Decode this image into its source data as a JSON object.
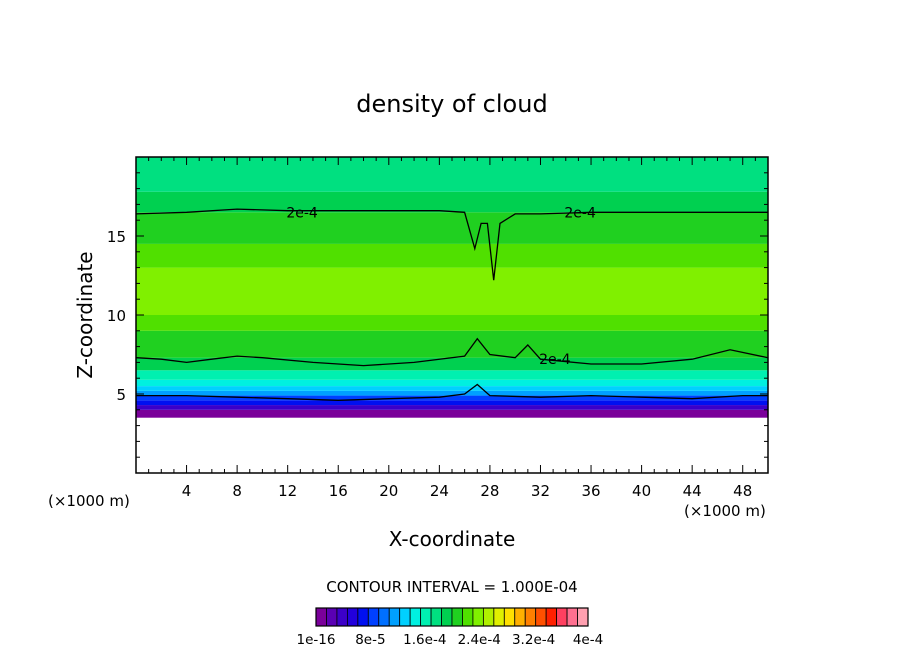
{
  "chart_data": {
    "type": "heatmap",
    "title": "density of cloud",
    "xlabel": "X-coordinate",
    "ylabel": "Z-coordinate",
    "x_unit": "(×1000 m)",
    "y_unit": "(×1000 m)",
    "xlim": [
      0,
      50
    ],
    "ylim": [
      0,
      20
    ],
    "x_ticks": [
      4,
      8,
      12,
      16,
      20,
      24,
      28,
      32,
      36,
      40,
      44,
      48
    ],
    "y_ticks": [
      5,
      10,
      15
    ],
    "contour_interval_text": "CONTOUR INTERVAL = 1.000E-04",
    "contour_labels": [
      "2e-4",
      "2e-4",
      "2e-4"
    ],
    "colorbar": {
      "labels": [
        "1e-16",
        "8e-5",
        "1.6e-4",
        "2.4e-4",
        "3.2e-4",
        "4e-4"
      ],
      "colors": [
        "#7a009a",
        "#5a00b4",
        "#3c00c8",
        "#2200dc",
        "#0010f0",
        "#0040ff",
        "#0070ff",
        "#00a0ff",
        "#00d0ff",
        "#00f0e0",
        "#00f0b0",
        "#00e080",
        "#00d050",
        "#20d020",
        "#50e000",
        "#80f000",
        "#b0f000",
        "#e0f000",
        "#ffe000",
        "#ffb000",
        "#ff8000",
        "#ff5000",
        "#ff2000",
        "#ff4060",
        "#ff7090",
        "#ffa0b0"
      ]
    },
    "contours": [
      {
        "label": "2e-4",
        "z": [
          [
            0,
            16.4
          ],
          [
            4,
            16.5
          ],
          [
            8,
            16.7
          ],
          [
            12,
            16.6
          ],
          [
            16,
            16.6
          ],
          [
            20,
            16.6
          ],
          [
            24,
            16.6
          ],
          [
            26,
            16.5
          ],
          [
            26.8,
            14.2
          ],
          [
            27.3,
            15.8
          ],
          [
            27.8,
            15.8
          ],
          [
            28.3,
            12.2
          ],
          [
            28.8,
            15.8
          ],
          [
            30,
            16.4
          ],
          [
            32,
            16.4
          ],
          [
            36,
            16.5
          ],
          [
            40,
            16.5
          ],
          [
            44,
            16.5
          ],
          [
            48,
            16.5
          ],
          [
            50,
            16.5
          ]
        ]
      },
      {
        "label": "2e-4",
        "z": [
          [
            0,
            7.3
          ],
          [
            2,
            7.2
          ],
          [
            4,
            7.0
          ],
          [
            6,
            7.2
          ],
          [
            8,
            7.4
          ],
          [
            10,
            7.3
          ],
          [
            14,
            7.0
          ],
          [
            18,
            6.8
          ],
          [
            22,
            7.0
          ],
          [
            26,
            7.4
          ],
          [
            27,
            8.5
          ],
          [
            28,
            7.5
          ],
          [
            30,
            7.3
          ],
          [
            31,
            8.1
          ],
          [
            32,
            7.2
          ],
          [
            36,
            6.9
          ],
          [
            40,
            6.9
          ],
          [
            44,
            7.2
          ],
          [
            47,
            7.8
          ],
          [
            50,
            7.3
          ]
        ]
      },
      {
        "label": "",
        "z": [
          [
            0,
            4.9
          ],
          [
            4,
            4.9
          ],
          [
            8,
            4.8
          ],
          [
            12,
            4.7
          ],
          [
            16,
            4.6
          ],
          [
            20,
            4.7
          ],
          [
            24,
            4.8
          ],
          [
            26,
            5.0
          ],
          [
            27,
            5.6
          ],
          [
            28,
            4.9
          ],
          [
            32,
            4.8
          ],
          [
            36,
            4.9
          ],
          [
            40,
            4.8
          ],
          [
            44,
            4.7
          ],
          [
            48,
            4.9
          ],
          [
            50,
            4.9
          ]
        ]
      }
    ],
    "field": {
      "z_bands": [
        {
          "z0": 0.0,
          "z1": 3.5,
          "value": null
        },
        {
          "z0": 3.5,
          "z1": 4.0,
          "value": 0.0
        },
        {
          "z0": 4.0,
          "z1": 4.3,
          "value": 3e-05
        },
        {
          "z0": 4.3,
          "z1": 4.6,
          "value": 6e-05
        },
        {
          "z0": 4.6,
          "z1": 4.9,
          "value": 8e-05
        },
        {
          "z0": 4.9,
          "z1": 5.2,
          "value": 0.00011
        },
        {
          "z0": 5.2,
          "z1": 5.5,
          "value": 0.00013
        },
        {
          "z0": 5.5,
          "z1": 5.9,
          "value": 0.000145
        },
        {
          "z0": 5.9,
          "z1": 6.5,
          "value": 0.00016
        },
        {
          "z0": 6.5,
          "z1": 7.3,
          "value": 0.000185
        },
        {
          "z0": 7.3,
          "z1": 9.0,
          "value": 0.00021
        },
        {
          "z0": 9.0,
          "z1": 10.0,
          "value": 0.00023
        },
        {
          "z0": 10.0,
          "z1": 13.0,
          "value": 0.00024
        },
        {
          "z0": 13.0,
          "z1": 14.5,
          "value": 0.00023
        },
        {
          "z0": 14.5,
          "z1": 16.5,
          "value": 0.00021
        },
        {
          "z0": 16.5,
          "z1": 17.8,
          "value": 0.000185
        },
        {
          "z0": 17.8,
          "z1": 20.0,
          "value": 0.00017
        }
      ]
    }
  }
}
